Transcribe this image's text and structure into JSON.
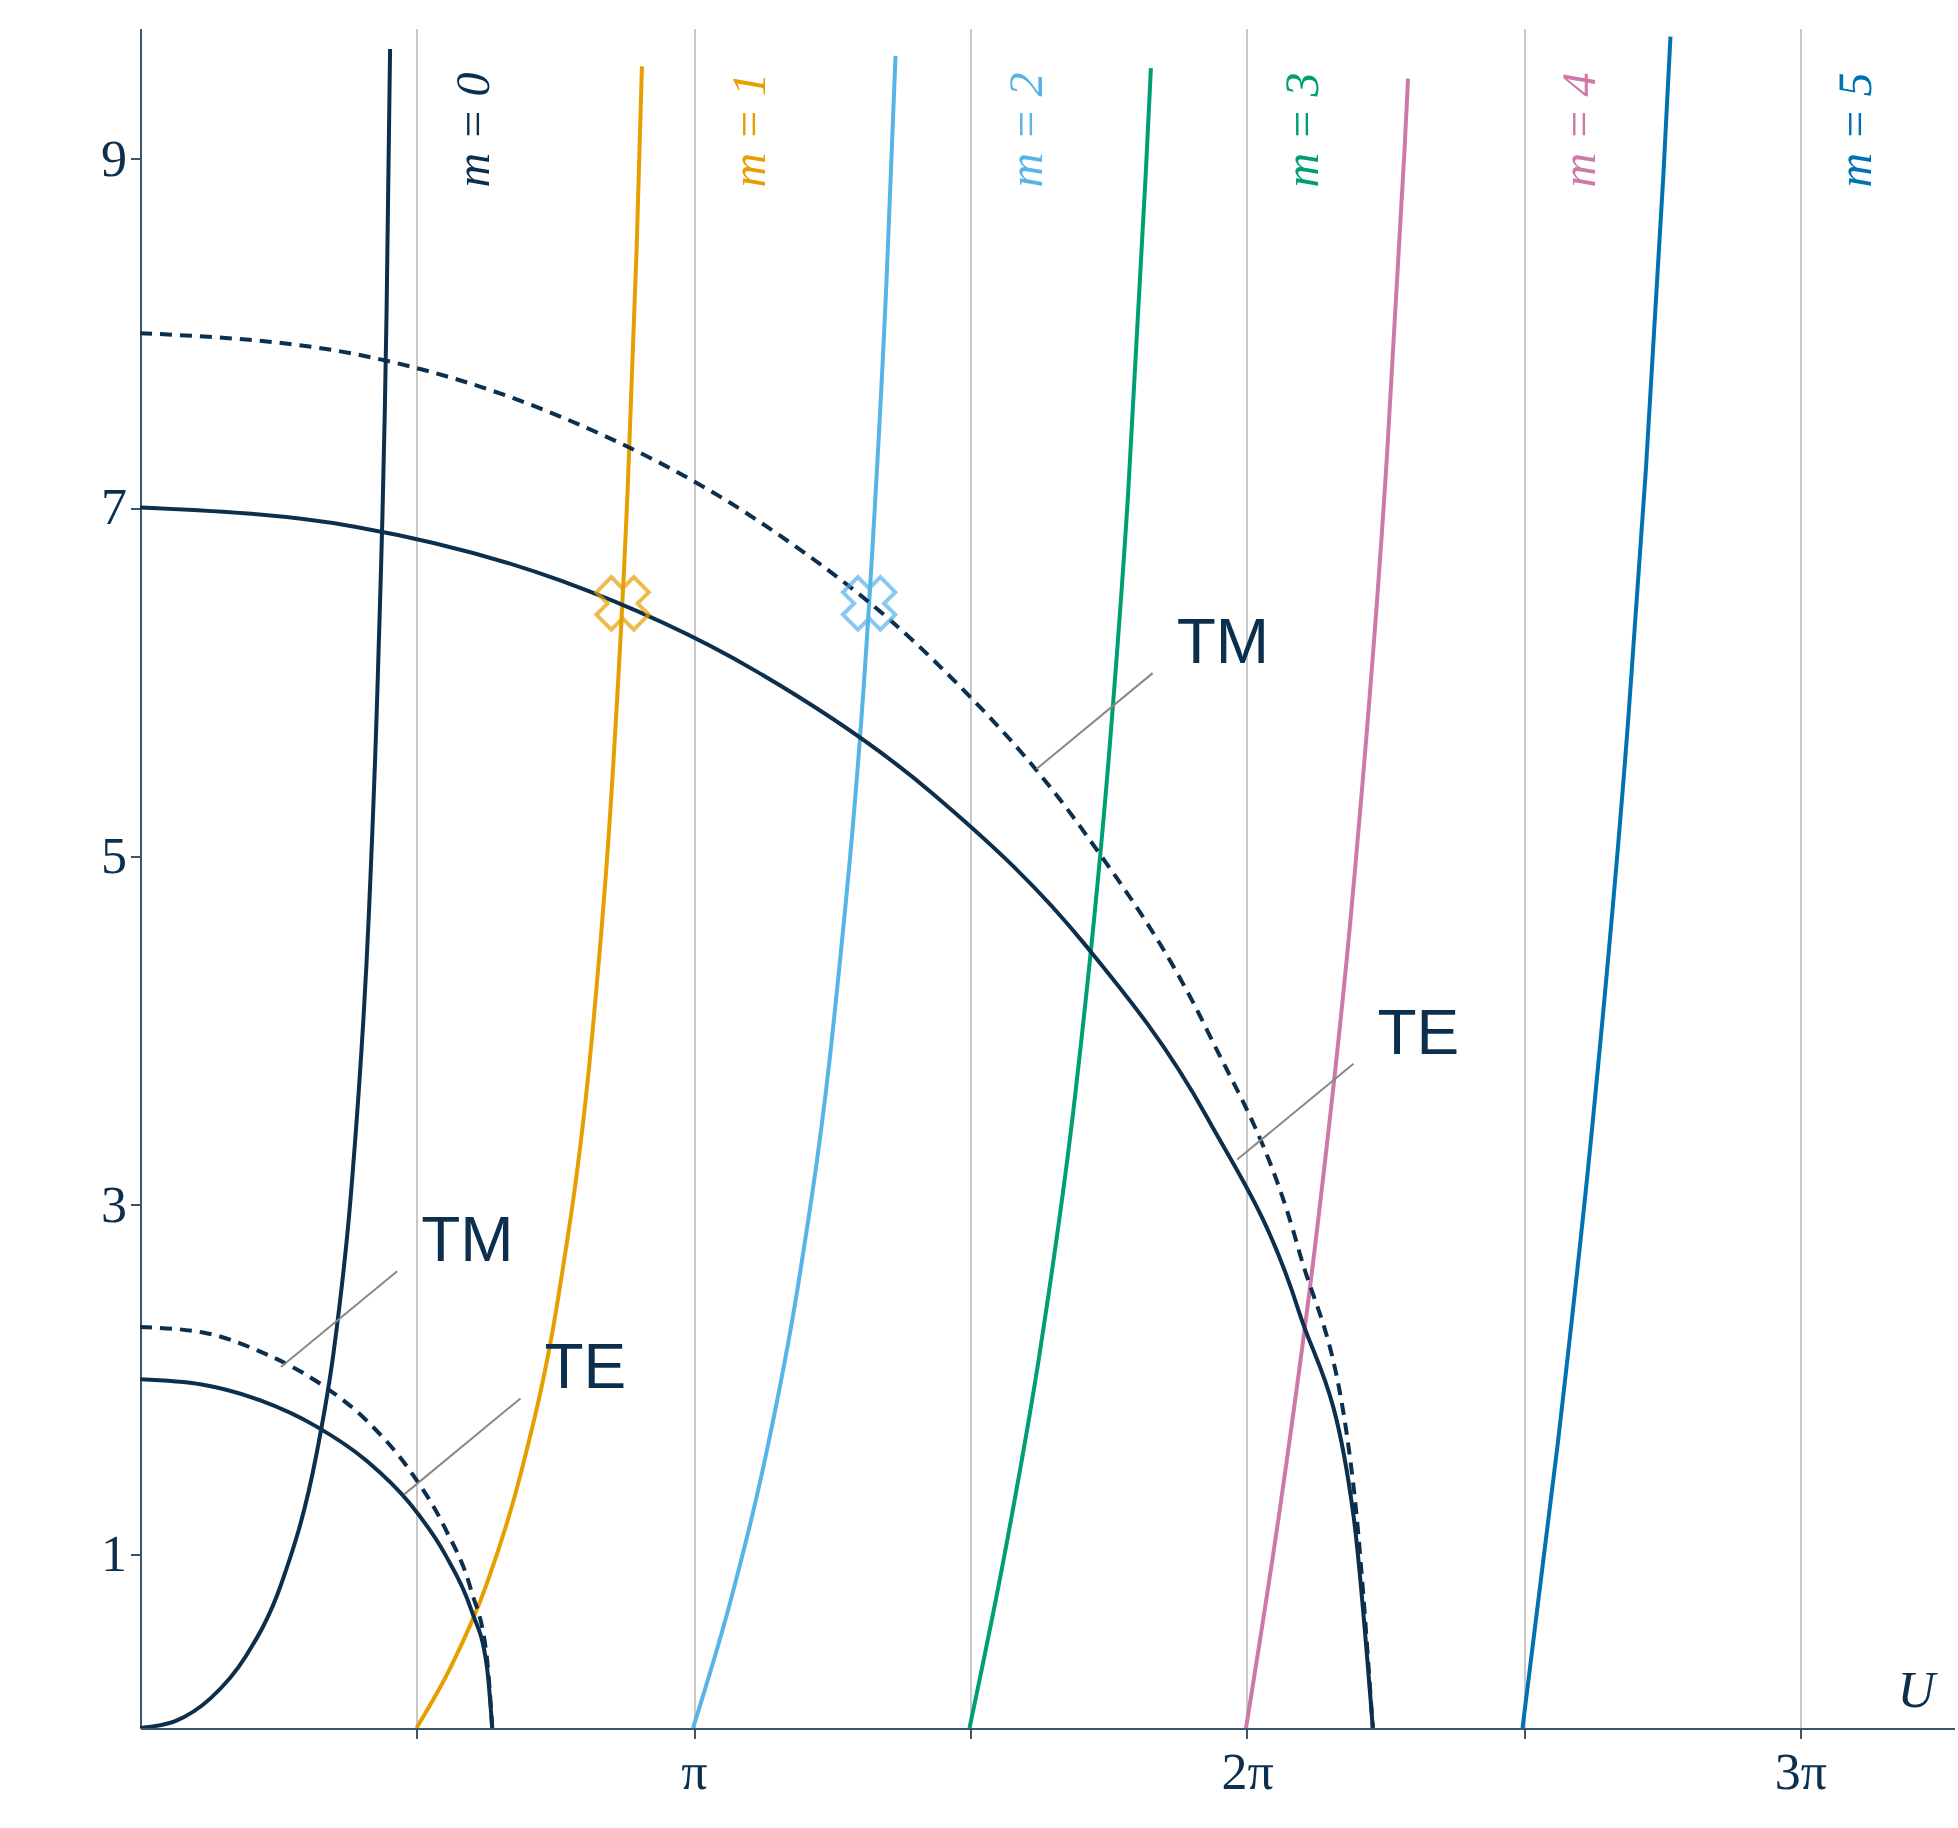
{
  "chart_data": {
    "type": "line",
    "xlabel": "U",
    "xlim": [
      0,
      10.3
    ],
    "ylim": [
      0,
      9.75
    ],
    "xticks": [
      {
        "value": 1.5708,
        "label": null
      },
      {
        "value": 3.1416,
        "label": "π"
      },
      {
        "value": 4.7124,
        "label": null
      },
      {
        "value": 6.2832,
        "label": "2π"
      },
      {
        "value": 7.854,
        "label": null
      },
      {
        "value": 9.4248,
        "label": "3π"
      }
    ],
    "yticks": [
      1,
      3,
      5,
      7,
      9
    ],
    "grid": "x",
    "series": [
      {
        "name": "m = 0",
        "color": "#0b2f4c",
        "x": [
          0,
          0.2,
          0.4,
          0.6,
          0.8,
          1.0,
          1.1,
          1.2,
          1.3,
          1.35,
          1.4,
          1.42
        ],
        "values": [
          0,
          0.04,
          0.17,
          0.41,
          0.82,
          1.56,
          2.16,
          3.09,
          4.68,
          6.02,
          8.12,
          9.63
        ]
      },
      {
        "name": "m = 1",
        "color": "#e69f00",
        "x": [
          1.57,
          1.77,
          1.97,
          2.17,
          2.37,
          2.57,
          2.67,
          2.77,
          2.82,
          2.85
        ],
        "values": [
          0,
          0.36,
          0.83,
          1.49,
          2.44,
          4.0,
          5.25,
          7.13,
          8.49,
          9.53
        ]
      },
      {
        "name": "m = 2",
        "color": "#56b4e9",
        "x": [
          3.14,
          3.34,
          3.54,
          3.74,
          3.94,
          4.14,
          4.24,
          4.29
        ],
        "values": [
          0,
          0.68,
          1.5,
          2.56,
          4.06,
          6.45,
          8.33,
          9.59
        ]
      },
      {
        "name": "m = 3",
        "color": "#009e73",
        "x": [
          4.71,
          4.91,
          5.11,
          5.31,
          5.51,
          5.61,
          5.71,
          5.74
        ],
        "values": [
          0,
          1.0,
          2.16,
          3.63,
          5.68,
          7.07,
          8.9,
          9.52
        ]
      },
      {
        "name": "m = 4",
        "color": "#cc79a7",
        "x": [
          6.28,
          6.48,
          6.68,
          6.88,
          7.08,
          7.18,
          7.2
        ],
        "values": [
          0,
          1.31,
          2.83,
          4.71,
          7.29,
          9.05,
          9.46
        ]
      },
      {
        "name": "m = 5",
        "color": "#0072b2",
        "x": [
          7.85,
          8.05,
          8.25,
          8.45,
          8.55,
          8.65,
          8.69
        ],
        "values": [
          0,
          1.63,
          3.49,
          5.78,
          7.21,
          8.91,
          9.7
        ]
      },
      {
        "type": "line",
        "color": "#0b2f4c",
        "line_style": "solid",
        "x": [
          0,
          0.35,
          0.68,
          1.0,
          1.29,
          1.53,
          1.73,
          1.88,
          1.97,
          2
        ],
        "values": [
          2,
          1.97,
          1.88,
          1.73,
          1.53,
          1.29,
          1.0,
          0.68,
          0.35,
          0
        ]
      },
      {
        "type": "line",
        "color": "#0b2f4c",
        "line_style": "dashed",
        "x": [
          0,
          0.35,
          0.68,
          1.0,
          1.29,
          1.53,
          1.73,
          1.88,
          1.97,
          2
        ],
        "values": [
          2.3,
          2.27,
          2.16,
          1.99,
          1.76,
          1.48,
          1.15,
          0.79,
          0.4,
          0
        ]
      },
      {
        "type": "line",
        "color": "#0b2f4c",
        "line_style": "solid",
        "x": [
          0,
          1.22,
          2.39,
          3.5,
          4.5,
          5.36,
          6.06,
          6.58,
          6.89,
          7
        ],
        "values": [
          7,
          6.89,
          6.58,
          6.06,
          5.36,
          4.5,
          3.5,
          2.39,
          1.22,
          0
        ]
      },
      {
        "type": "line",
        "color": "#0b2f4c",
        "line_style": "dashed",
        "x": [
          0,
          1.22,
          2.39,
          3.5,
          4.5,
          5.36,
          6.06,
          6.58,
          6.89,
          7
        ],
        "values": [
          8,
          7.88,
          7.52,
          6.93,
          6.13,
          5.14,
          4.0,
          2.74,
          1.39,
          0
        ]
      },
      {
        "type": "scatter",
        "marker": "cross",
        "color": "#e69f00",
        "x": [
          2.74
        ],
        "values": [
          6.45
        ]
      },
      {
        "type": "scatter",
        "marker": "cross",
        "color": "#56b4e9",
        "x": [
          4.14
        ],
        "values": [
          6.45
        ]
      }
    ],
    "annotations": [
      {
        "text": "TM",
        "x": 5.09,
        "y": 5.5
      },
      {
        "text": "TE",
        "x": 6.23,
        "y": 3.26
      },
      {
        "text": "TM",
        "x": 0.8,
        "y": 2.07
      },
      {
        "text": "TE",
        "x": 1.5,
        "y": 1.34
      }
    ]
  }
}
